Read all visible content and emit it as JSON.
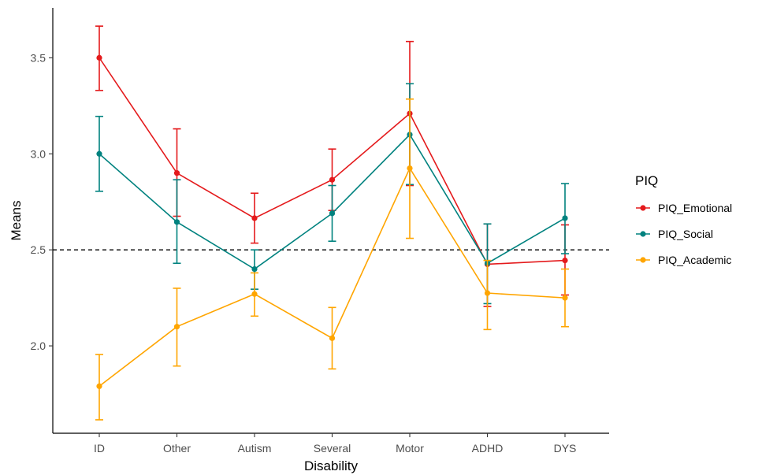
{
  "chart_data": {
    "type": "line",
    "xlabel": "Disability",
    "ylabel": "Means",
    "categories": [
      "ID",
      "Other",
      "Autism",
      "Several",
      "Motor",
      "ADHD",
      "DYS"
    ],
    "ylim": [
      1.545,
      3.76
    ],
    "yticks": [
      2.0,
      2.5,
      3.0,
      3.5
    ],
    "ytick_labels": [
      "2.0",
      "2.5",
      "3.0",
      "3.5"
    ],
    "reference_line": 2.5,
    "grid": false,
    "legend": {
      "title": "PIQ",
      "position": "right"
    },
    "series": [
      {
        "name": "PIQ_Emotional",
        "color": "#e41a1c",
        "values": [
          3.5,
          2.9,
          2.665,
          2.865,
          3.21,
          2.425,
          2.445
        ],
        "lower": [
          3.33,
          2.675,
          2.535,
          2.705,
          2.835,
          2.205,
          2.265
        ],
        "upper": [
          3.665,
          3.13,
          2.795,
          3.025,
          3.585,
          2.635,
          2.63
        ]
      },
      {
        "name": "PIQ_Social",
        "color": "#00827f",
        "values": [
          3.0,
          2.645,
          2.4,
          2.69,
          3.1,
          2.43,
          2.665
        ],
        "lower": [
          2.805,
          2.43,
          2.295,
          2.545,
          2.84,
          2.22,
          2.48
        ],
        "upper": [
          3.195,
          2.865,
          2.5,
          2.835,
          3.365,
          2.635,
          2.845
        ]
      },
      {
        "name": "PIQ_Academic",
        "color": "#ffa500",
        "values": [
          1.79,
          2.1,
          2.27,
          2.04,
          2.925,
          2.275,
          2.25
        ],
        "lower": [
          1.615,
          1.895,
          2.155,
          1.88,
          2.56,
          2.085,
          2.1
        ],
        "upper": [
          1.955,
          2.3,
          2.38,
          2.2,
          3.285,
          2.445,
          2.4
        ]
      }
    ]
  }
}
